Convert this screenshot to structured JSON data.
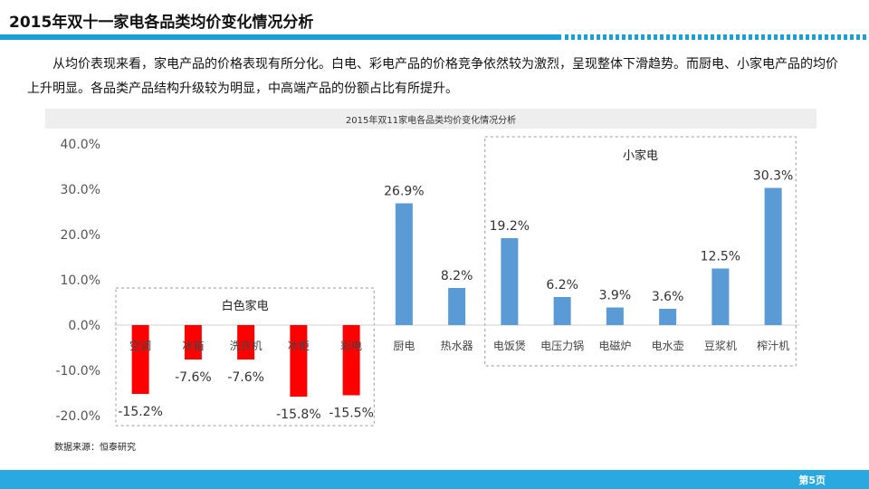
{
  "header": {
    "title": "2015年双十一家电各品类均价变化情况分析"
  },
  "intro": {
    "text": "从均价表现来看，家电产品的价格表现有所分化。白电、彩电产品的价格竞争依然较为激烈，呈现整体下滑趋势。而厨电、小家电产品的均价上升明显。各品类产品结构升级较为明显，中高端产品的份额占比有所提升。"
  },
  "chart_data": {
    "type": "bar",
    "title": "2015年双11家电各品类均价变化情况分析",
    "categories": [
      "空调",
      "冰箱",
      "洗衣机",
      "冰柜",
      "彩电",
      "厨电",
      "热水器",
      "电饭煲",
      "电压力锅",
      "电磁炉",
      "电水壶",
      "豆浆机",
      "榨汁机"
    ],
    "values": [
      -15.2,
      -7.6,
      -7.6,
      -15.8,
      -15.5,
      26.9,
      8.2,
      19.2,
      6.2,
      3.9,
      3.6,
      12.5,
      30.3
    ],
    "data_labels": [
      "-15.2%",
      "-7.6%",
      "-7.6%",
      "-15.8%",
      "-15.5%",
      "26.9%",
      "8.2%",
      "19.2%",
      "6.2%",
      "3.9%",
      "3.6%",
      "12.5%",
      "30.3%"
    ],
    "yticks": [
      "40.0%",
      "30.0%",
      "20.0%",
      "10.0%",
      "0.0%",
      "-10.0%",
      "-20.0%"
    ],
    "ylim": [
      -20,
      40
    ],
    "groups": [
      {
        "label": "白色家电",
        "from": 0,
        "to": 4
      },
      {
        "label": "小家电",
        "from": 7,
        "to": 12
      }
    ],
    "negative_color": "#ff0000",
    "positive_color": "#5b9bd5",
    "grid": false
  },
  "source": {
    "text": "数据来源：恒泰研究"
  },
  "footer": {
    "page": "第5页",
    "color": "#29a9e0"
  }
}
